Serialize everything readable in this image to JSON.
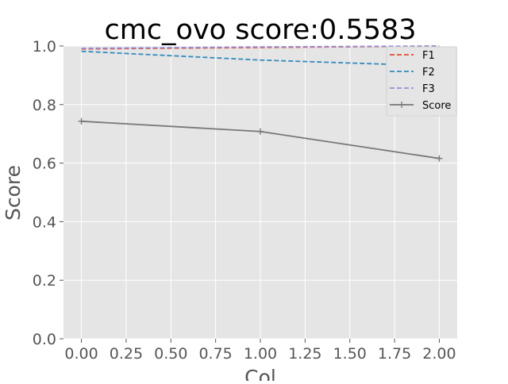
{
  "chart_data": {
    "type": "line",
    "title": "cmc_ovo score:0.5583",
    "xlabel": "Col",
    "ylabel": "Score",
    "xlim": [
      -0.1,
      2.1
    ],
    "ylim": [
      0.0,
      1.0
    ],
    "x": [
      0,
      1,
      2
    ],
    "xticks": [
      0.0,
      0.25,
      0.5,
      0.75,
      1.0,
      1.25,
      1.5,
      1.75,
      2.0
    ],
    "xtick_labels": [
      "0.00",
      "0.25",
      "0.50",
      "0.75",
      "1.00",
      "1.25",
      "1.50",
      "1.75",
      "2.00"
    ],
    "yticks": [
      0.0,
      0.2,
      0.4,
      0.6,
      0.8,
      1.0
    ],
    "ytick_labels": [
      "0.0",
      "0.2",
      "0.4",
      "0.6",
      "0.8",
      "1.0"
    ],
    "grid": true,
    "legend_position": "top-right",
    "series": [
      {
        "name": "F1",
        "values": [
          0.99,
          0.995,
          1.0
        ],
        "color": "#E24A33",
        "style": "dashed",
        "marker": "none"
      },
      {
        "name": "F2",
        "values": [
          0.982,
          0.952,
          0.932
        ],
        "color": "#348ABD",
        "style": "dashed",
        "marker": "none"
      },
      {
        "name": "F3",
        "values": [
          0.992,
          0.997,
          1.0
        ],
        "color": "#988ED5",
        "style": "dashed",
        "marker": "none"
      },
      {
        "name": "Score",
        "values": [
          0.743,
          0.708,
          0.616
        ],
        "color": "#777777",
        "style": "solid",
        "marker": "plus"
      }
    ]
  }
}
